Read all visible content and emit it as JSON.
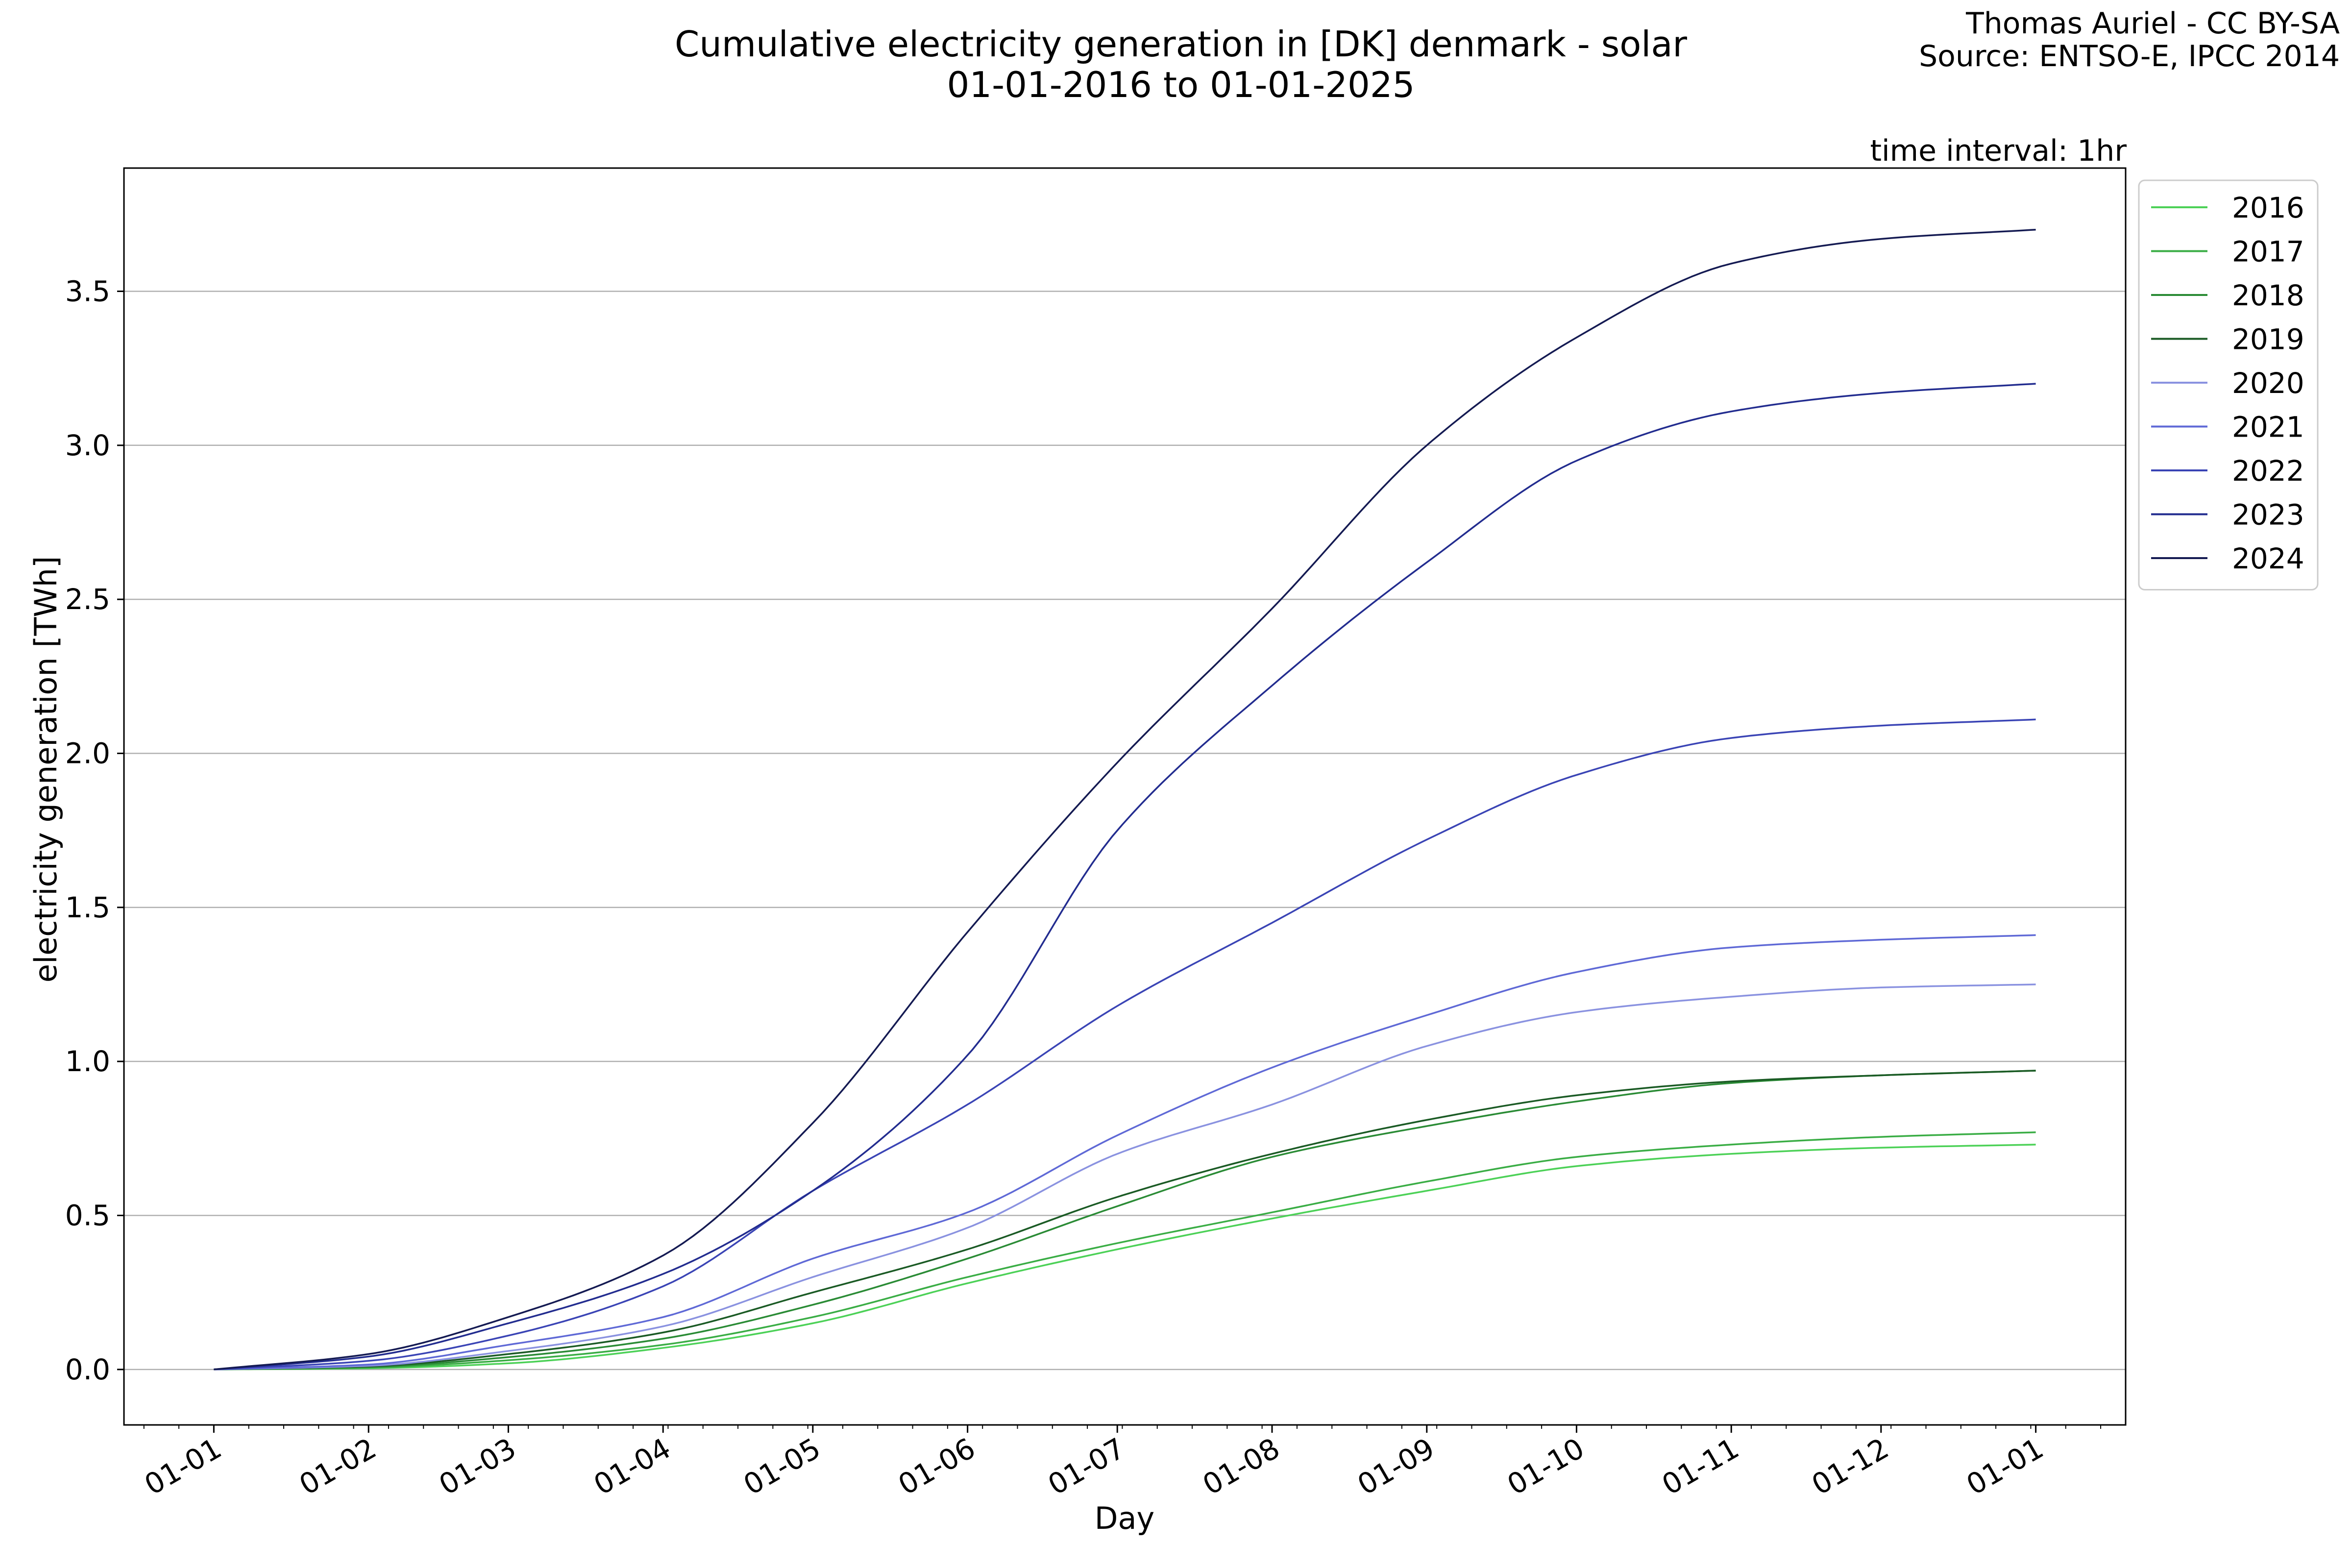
{
  "credit": {
    "author": "Thomas Auriel - CC BY-SA",
    "source": "Source: ENTSO-E, IPCC 2014"
  },
  "chart_data": {
    "type": "line",
    "title": "Cumulative electricity generation in [DK] denmark - solar",
    "subtitle": "01-01-2016 to 01-01-2025",
    "annotation": "time interval: 1hr",
    "xlabel": "Day",
    "ylabel": "electricity generation [TWh]",
    "x_ticks": [
      "01-01",
      "01-02",
      "01-03",
      "01-04",
      "01-05",
      "01-06",
      "01-07",
      "01-08",
      "01-09",
      "01-10",
      "01-11",
      "01-12",
      "01-01"
    ],
    "x_tick_days": [
      0,
      31,
      59,
      90,
      120,
      151,
      181,
      212,
      243,
      273,
      304,
      334,
      365
    ],
    "xlim": [
      -18,
      383
    ],
    "y_ticks": [
      "0.0",
      "0.5",
      "1.0",
      "1.5",
      "2.0",
      "2.5",
      "3.0",
      "3.5"
    ],
    "ylim": [
      -0.18,
      3.9
    ],
    "grid": "horizontal",
    "legend_position": "outside-top-right",
    "x": [
      0,
      31,
      59,
      90,
      120,
      151,
      181,
      212,
      243,
      273,
      304,
      334,
      365
    ],
    "series": [
      {
        "name": "2016",
        "color": "#4cd157",
        "values": [
          0,
          0.004,
          0.02,
          0.07,
          0.15,
          0.28,
          0.39,
          0.49,
          0.58,
          0.66,
          0.7,
          0.72,
          0.73
        ]
      },
      {
        "name": "2017",
        "color": "#3aad45",
        "values": [
          0,
          0.006,
          0.03,
          0.08,
          0.17,
          0.3,
          0.41,
          0.51,
          0.61,
          0.69,
          0.73,
          0.755,
          0.77
        ]
      },
      {
        "name": "2018",
        "color": "#2a8b35",
        "values": [
          0,
          0.008,
          0.04,
          0.1,
          0.21,
          0.36,
          0.53,
          0.69,
          0.79,
          0.87,
          0.93,
          0.955,
          0.97
        ]
      },
      {
        "name": "2019",
        "color": "#1a5a24",
        "values": [
          0,
          0.01,
          0.05,
          0.12,
          0.25,
          0.39,
          0.56,
          0.7,
          0.81,
          0.89,
          0.935,
          0.955,
          0.97
        ]
      },
      {
        "name": "2020",
        "color": "#8a92e0",
        "values": [
          0,
          0.012,
          0.06,
          0.14,
          0.3,
          0.46,
          0.7,
          0.86,
          1.05,
          1.16,
          1.21,
          1.24,
          1.25
        ]
      },
      {
        "name": "2021",
        "color": "#5f69d6",
        "values": [
          0,
          0.016,
          0.08,
          0.17,
          0.36,
          0.51,
          0.76,
          0.98,
          1.15,
          1.29,
          1.37,
          1.395,
          1.41
        ]
      },
      {
        "name": "2022",
        "color": "#3a44b5",
        "values": [
          0,
          0.028,
          0.11,
          0.27,
          0.58,
          0.86,
          1.18,
          1.45,
          1.72,
          1.93,
          2.05,
          2.09,
          2.11
        ]
      },
      {
        "name": "2023",
        "color": "#222c8f",
        "values": [
          0,
          0.042,
          0.15,
          0.31,
          0.58,
          1.02,
          1.75,
          2.22,
          2.62,
          2.95,
          3.11,
          3.17,
          3.2
        ]
      },
      {
        "name": "2024",
        "color": "#141a52",
        "values": [
          0,
          0.05,
          0.17,
          0.37,
          0.8,
          1.42,
          1.97,
          2.47,
          3.0,
          3.35,
          3.59,
          3.67,
          3.7
        ]
      }
    ]
  }
}
